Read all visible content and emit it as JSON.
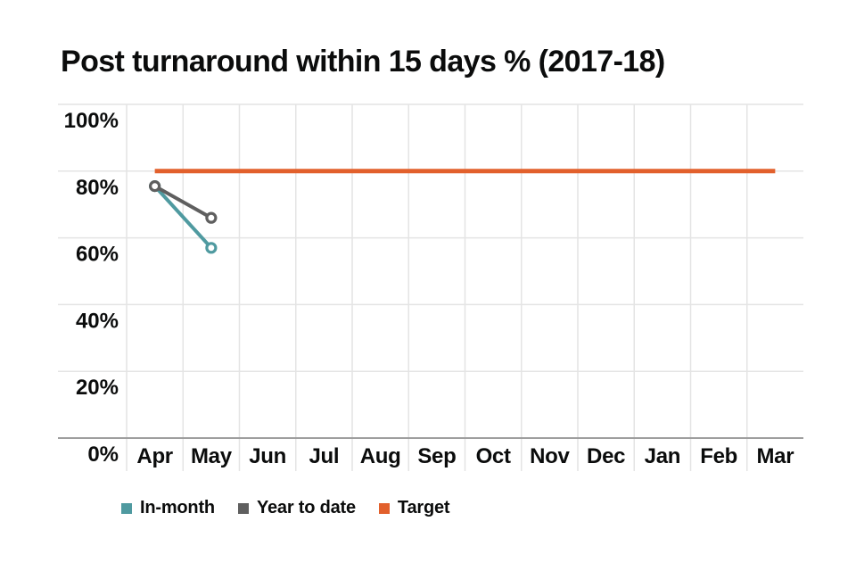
{
  "title": "Post turnaround within 15 days % (2017-18)",
  "colors": {
    "text": "#0b0c0c",
    "background": "#ffffff",
    "gridline": "#e4e4e4",
    "axis_line": "#9e9e9e",
    "in_month": "#4f9aa0",
    "year_to_date": "#5f5f5f",
    "target": "#e2602c"
  },
  "legend": [
    {
      "label": "In-month",
      "series": "in_month"
    },
    {
      "label": "Year to date",
      "series": "year_to_date"
    },
    {
      "label": "Target",
      "series": "target"
    }
  ],
  "chart_data": {
    "type": "line",
    "title": "Post turnaround within 15 days % (2017-18)",
    "categories": [
      "Apr",
      "May",
      "Jun",
      "Jul",
      "Aug",
      "Sep",
      "Oct",
      "Nov",
      "Dec",
      "Jan",
      "Feb",
      "Mar"
    ],
    "series": [
      {
        "name": "In-month",
        "key": "in_month",
        "marker": "open-circle",
        "values": [
          75.5,
          57,
          null,
          null,
          null,
          null,
          null,
          null,
          null,
          null,
          null,
          null
        ]
      },
      {
        "name": "Year to date",
        "key": "year_to_date",
        "marker": "open-circle",
        "values": [
          75.5,
          66,
          null,
          null,
          null,
          null,
          null,
          null,
          null,
          null,
          null,
          null
        ]
      },
      {
        "name": "Target",
        "key": "target",
        "marker": "none",
        "style": "horizontal-rule",
        "values": [
          80,
          80,
          80,
          80,
          80,
          80,
          80,
          80,
          80,
          80,
          80,
          80
        ]
      }
    ],
    "xlabel": "",
    "ylabel": "",
    "ylim": [
      0,
      100
    ],
    "yticks": [
      0,
      20,
      40,
      60,
      80,
      100
    ],
    "ytick_suffix": "%",
    "grid": true,
    "legend_position": "bottom"
  }
}
